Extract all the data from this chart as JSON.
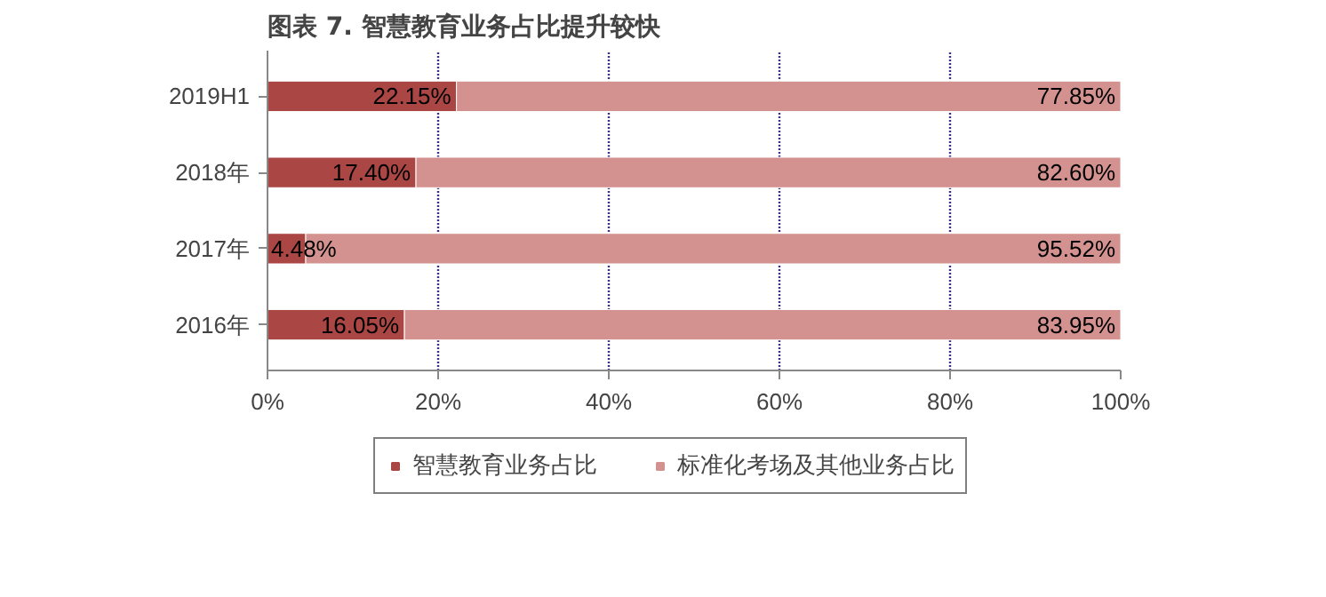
{
  "chart_data": {
    "type": "bar",
    "orientation": "horizontal",
    "stacked": true,
    "title": "图表 7. 智慧教育业务占比提升较快",
    "categories": [
      "2019H1",
      "2018年",
      "2017年",
      "2016年"
    ],
    "series": [
      {
        "name": "智慧教育业务占比",
        "color": "#aa4643",
        "values": [
          22.15,
          17.4,
          4.48,
          16.05
        ],
        "value_labels": [
          "22.15%",
          "17.40%",
          "4.48%",
          "16.05%"
        ]
      },
      {
        "name": "标准化考场及其他业务占比",
        "color": "#d39290",
        "values": [
          77.85,
          82.6,
          95.52,
          83.95
        ],
        "value_labels": [
          "77.85%",
          "82.60%",
          "95.52%",
          "83.95%"
        ]
      }
    ],
    "xlim": [
      0,
      100
    ],
    "xticks": [
      {
        "value": 0,
        "label": "0%"
      },
      {
        "value": 20,
        "label": "20%"
      },
      {
        "value": 40,
        "label": "40%"
      },
      {
        "value": 60,
        "label": "60%"
      },
      {
        "value": 80,
        "label": "80%"
      },
      {
        "value": 100,
        "label": "100%"
      }
    ],
    "grid": "x",
    "legend": "bottom"
  }
}
